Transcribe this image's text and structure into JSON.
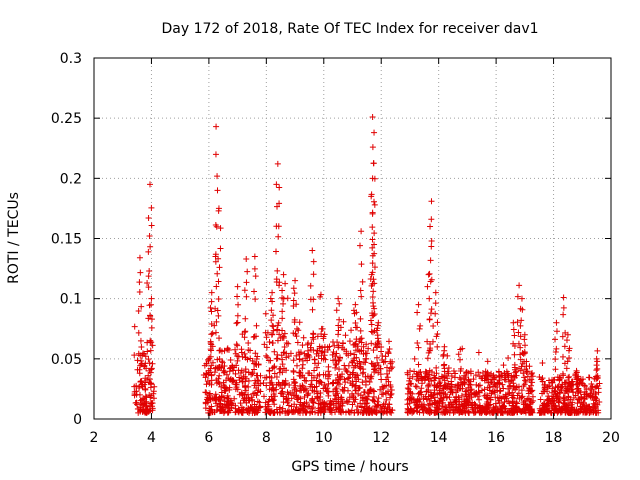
{
  "chart_data": {
    "type": "scatter",
    "title": "Day 172 of 2018, Rate Of TEC Index for receiver dav1",
    "xlabel": "GPS time / hours",
    "ylabel": "ROTI / TECUs",
    "xlim": [
      2,
      20
    ],
    "ylim": [
      0,
      0.3
    ],
    "x_ticks": [
      2,
      4,
      6,
      8,
      10,
      12,
      14,
      16,
      18,
      20
    ],
    "y_ticks": [
      0,
      0.05,
      0.1,
      0.15,
      0.2,
      0.25,
      0.3
    ],
    "x_tick_labels": [
      "2",
      "4",
      "6",
      "8",
      "10",
      "12",
      "14",
      "16",
      "18",
      "20"
    ],
    "y_tick_labels": [
      "0",
      "0.05",
      "0.1",
      "0.15",
      "0.2",
      "0.25",
      "0.3"
    ],
    "grid": true,
    "marker": "+",
    "color": "#e00000",
    "clusters": [
      {
        "x_start": 3.4,
        "x_end": 4.1,
        "base_max": 0.05,
        "spikes": [
          [
            3.6,
            0.134
          ],
          [
            3.95,
            0.195
          ],
          [
            3.9,
            0.167
          ],
          [
            4.0,
            0.1
          ]
        ]
      },
      {
        "x_start": 5.8,
        "x_end": 7.8,
        "base_max": 0.055,
        "spikes": [
          [
            6.25,
            0.243
          ],
          [
            6.3,
            0.19
          ],
          [
            6.35,
            0.175
          ],
          [
            6.1,
            0.105
          ],
          [
            7.3,
            0.133
          ],
          [
            7.6,
            0.135
          ],
          [
            7.0,
            0.11
          ]
        ]
      },
      {
        "x_start": 7.9,
        "x_end": 10.0,
        "base_max": 0.07,
        "spikes": [
          [
            8.4,
            0.212
          ],
          [
            8.35,
            0.195
          ],
          [
            8.6,
            0.12
          ],
          [
            9.0,
            0.115
          ],
          [
            9.6,
            0.14
          ],
          [
            8.2,
            0.105
          ]
        ]
      },
      {
        "x_start": 10.0,
        "x_end": 12.4,
        "base_max": 0.06,
        "spikes": [
          [
            11.7,
            0.251
          ],
          [
            11.75,
            0.238
          ],
          [
            11.7,
            0.2
          ],
          [
            11.65,
            0.185
          ],
          [
            11.3,
            0.156
          ],
          [
            11.75,
            0.145
          ],
          [
            11.9,
            0.08
          ],
          [
            10.5,
            0.1
          ],
          [
            11.1,
            0.095
          ]
        ]
      },
      {
        "x_start": 12.9,
        "x_end": 15.9,
        "base_max": 0.035,
        "spikes": [
          [
            13.75,
            0.181
          ],
          [
            13.7,
            0.16
          ],
          [
            13.65,
            0.12
          ],
          [
            13.9,
            0.105
          ],
          [
            13.3,
            0.095
          ],
          [
            14.2,
            0.06
          ]
        ]
      },
      {
        "x_start": 15.9,
        "x_end": 17.3,
        "base_max": 0.035,
        "spikes": [
          [
            16.8,
            0.111
          ],
          [
            16.9,
            0.1
          ],
          [
            16.6,
            0.08
          ],
          [
            17.0,
            0.07
          ]
        ]
      },
      {
        "x_start": 17.5,
        "x_end": 19.6,
        "base_max": 0.03,
        "spikes": [
          [
            18.35,
            0.101
          ],
          [
            18.1,
            0.08
          ],
          [
            18.5,
            0.07
          ],
          [
            19.5,
            0.05
          ],
          [
            18.8,
            0.04
          ]
        ]
      }
    ]
  }
}
